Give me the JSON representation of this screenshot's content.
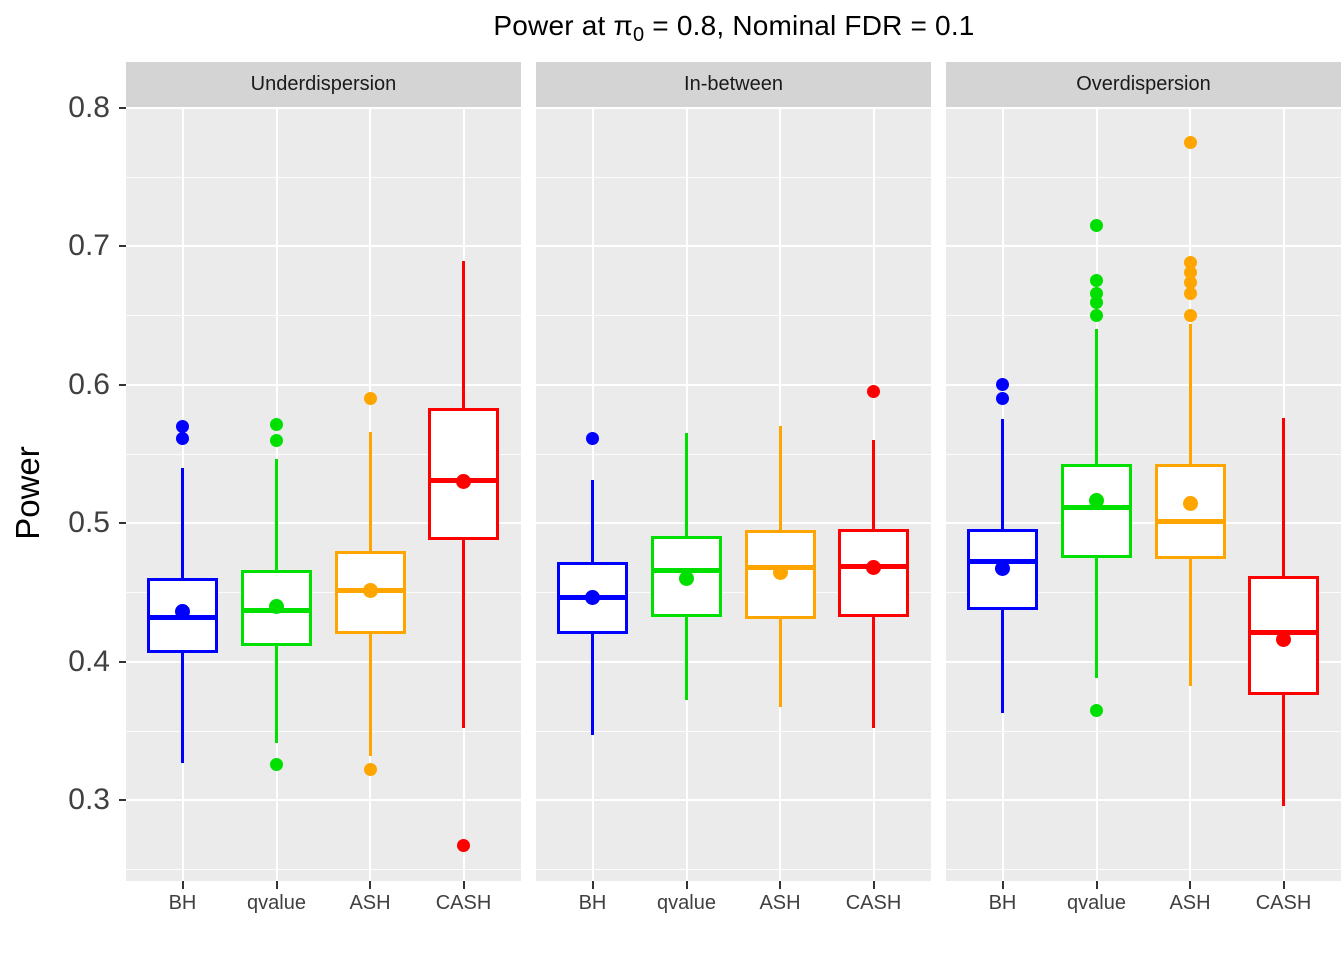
{
  "title": {
    "parts": [
      "Power at ",
      "π",
      "0",
      " = 0.8, Nominal FDR = 0.1"
    ],
    "full": "Power at π0 = 0.8, Nominal FDR = 0.1"
  },
  "y_axis": {
    "label": "Power",
    "ticks": [
      {
        "label": "0.8",
        "value": 0.8
      },
      {
        "label": "0.7",
        "value": 0.7
      },
      {
        "label": "0.6",
        "value": 0.6
      },
      {
        "label": "0.5",
        "value": 0.5
      },
      {
        "label": "0.4",
        "value": 0.4
      },
      {
        "label": "0.3",
        "value": 0.3
      }
    ]
  },
  "colors": {
    "BH": "#0000ff",
    "qvalue": "#00e000",
    "ASH": "#ffa500",
    "CASH": "#ff0000",
    "panel_background": "#ebebeb",
    "strip_background": "#d4d4d4",
    "gridline": "#ffffff",
    "axis_text": "#404040",
    "tick_mark": "#333333"
  },
  "chart_data": {
    "type": "boxplot",
    "title": "Power at π0 = 0.8, Nominal FDR = 0.1",
    "xlabel": "",
    "ylabel": "Power",
    "ylim": [
      0.2415,
      0.8005
    ],
    "y_major_ticks": [
      0.3,
      0.4,
      0.5,
      0.6,
      0.7,
      0.8
    ],
    "y_minor_ticks": [
      0.25,
      0.35,
      0.45,
      0.55,
      0.65,
      0.75
    ],
    "grid": true,
    "legend": false,
    "facet_position": "top",
    "categories": [
      "BH",
      "qvalue",
      "ASH",
      "CASH"
    ],
    "facets": [
      {
        "label": "Underdispersion",
        "boxes": [
          {
            "method": "BH",
            "whisker_low": 0.327,
            "q1": 0.406,
            "median": 0.432,
            "mean": 0.436,
            "q3": 0.46,
            "whisker_high": 0.54,
            "outliers_high": [
              0.561,
              0.57
            ],
            "outliers_low": []
          },
          {
            "method": "qvalue",
            "whisker_low": 0.341,
            "q1": 0.411,
            "median": 0.437,
            "mean": 0.44,
            "q3": 0.466,
            "whisker_high": 0.546,
            "outliers_high": [
              0.56,
              0.571
            ],
            "outliers_low": [
              0.326
            ]
          },
          {
            "method": "ASH",
            "whisker_low": 0.332,
            "q1": 0.42,
            "median": 0.451,
            "mean": 0.451,
            "q3": 0.48,
            "whisker_high": 0.566,
            "outliers_high": [
              0.59
            ],
            "outliers_low": [
              0.322
            ]
          },
          {
            "method": "CASH",
            "whisker_low": 0.352,
            "q1": 0.488,
            "median": 0.531,
            "mean": 0.53,
            "q3": 0.583,
            "whisker_high": 0.689,
            "outliers_high": [],
            "outliers_low": [
              0.267
            ]
          }
        ]
      },
      {
        "label": "In-between",
        "boxes": [
          {
            "method": "BH",
            "whisker_low": 0.347,
            "q1": 0.42,
            "median": 0.446,
            "mean": 0.446,
            "q3": 0.472,
            "whisker_high": 0.531,
            "outliers_high": [
              0.561
            ],
            "outliers_low": []
          },
          {
            "method": "qvalue",
            "whisker_low": 0.372,
            "q1": 0.432,
            "median": 0.466,
            "mean": 0.46,
            "q3": 0.491,
            "whisker_high": 0.565,
            "outliers_high": [],
            "outliers_low": []
          },
          {
            "method": "ASH",
            "whisker_low": 0.367,
            "q1": 0.431,
            "median": 0.468,
            "mean": 0.464,
            "q3": 0.495,
            "whisker_high": 0.57,
            "outliers_high": [],
            "outliers_low": []
          },
          {
            "method": "CASH",
            "whisker_low": 0.352,
            "q1": 0.432,
            "median": 0.469,
            "mean": 0.468,
            "q3": 0.496,
            "whisker_high": 0.56,
            "outliers_high": [
              0.595
            ],
            "outliers_low": []
          }
        ]
      },
      {
        "label": "Overdispersion",
        "boxes": [
          {
            "method": "BH",
            "whisker_low": 0.363,
            "q1": 0.437,
            "median": 0.472,
            "mean": 0.467,
            "q3": 0.496,
            "whisker_high": 0.575,
            "outliers_high": [
              0.59,
              0.6
            ],
            "outliers_low": []
          },
          {
            "method": "qvalue",
            "whisker_low": 0.388,
            "q1": 0.475,
            "median": 0.511,
            "mean": 0.516,
            "q3": 0.543,
            "whisker_high": 0.64,
            "outliers_high": [
              0.65,
              0.659,
              0.666,
              0.675,
              0.715
            ],
            "outliers_low": [
              0.365
            ]
          },
          {
            "method": "ASH",
            "whisker_low": 0.382,
            "q1": 0.474,
            "median": 0.501,
            "mean": 0.514,
            "q3": 0.543,
            "whisker_high": 0.644,
            "outliers_high": [
              0.65,
              0.666,
              0.674,
              0.681,
              0.688,
              0.775
            ],
            "outliers_low": []
          },
          {
            "method": "CASH",
            "whisker_low": 0.296,
            "q1": 0.376,
            "median": 0.421,
            "mean": 0.416,
            "q3": 0.462,
            "whisker_high": 0.576,
            "outliers_high": [],
            "outliers_low": []
          }
        ]
      }
    ]
  }
}
